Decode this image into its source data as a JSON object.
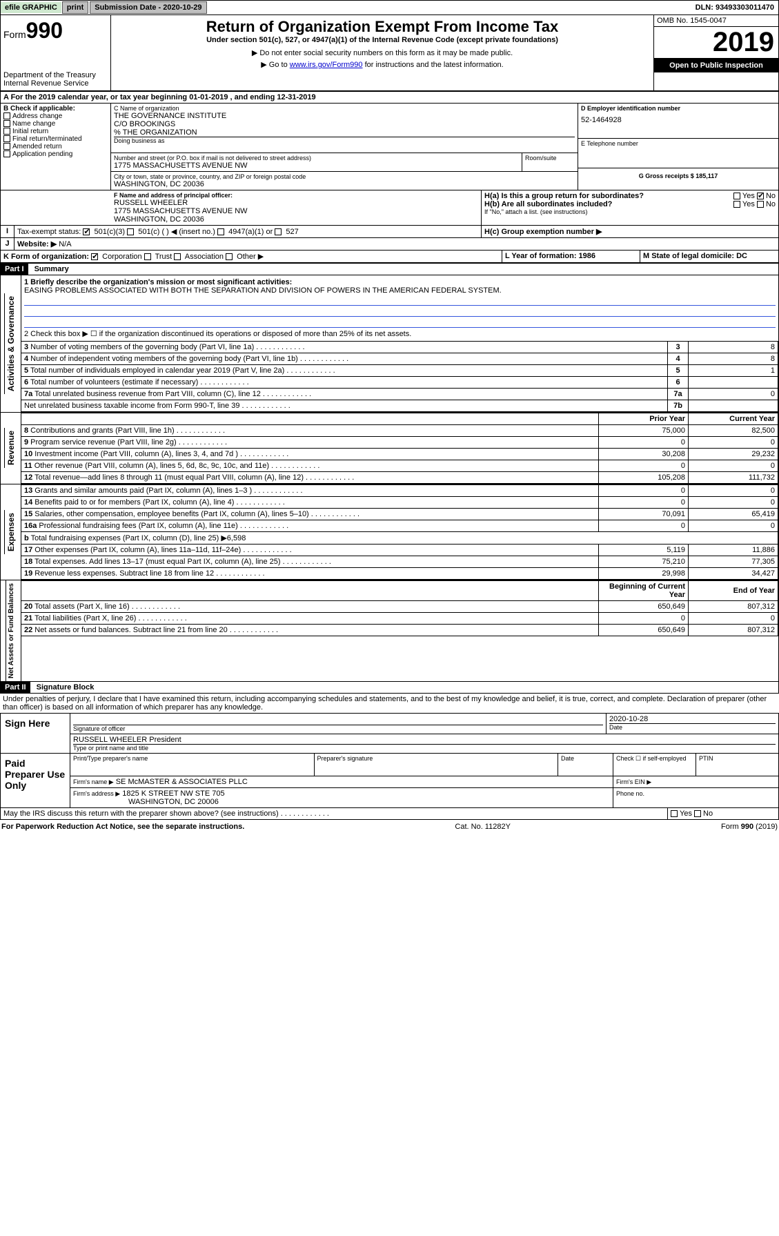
{
  "topbar": {
    "efile": "efile GRAPHIC",
    "print": "print",
    "subdate_label": "Submission Date - 2020-10-29",
    "dln": "DLN: 93493303011470"
  },
  "header": {
    "form_prefix": "Form",
    "form_number": "990",
    "title": "Return of Organization Exempt From Income Tax",
    "subtitle": "Under section 501(c), 527, or 4947(a)(1) of the Internal Revenue Code (except private foundations)",
    "note1": "▶ Do not enter social security numbers on this form as it may be made public.",
    "note2_pre": "▶ Go to ",
    "note2_link": "www.irs.gov/Form990",
    "note2_post": " for instructions and the latest information.",
    "dept1": "Department of the Treasury",
    "dept2": "Internal Revenue Service",
    "omb": "OMB No. 1545-0047",
    "year": "2019",
    "opi": "Open to Public Inspection"
  },
  "line_a": "A For the 2019 calendar year, or tax year beginning 01-01-2019    , and ending 12-31-2019",
  "block_b": {
    "label": "B Check if applicable:",
    "opts": [
      "Address change",
      "Name change",
      "Initial return",
      "Final return/terminated",
      "Amended return",
      "Application pending"
    ]
  },
  "block_c": {
    "name_label": "C Name of organization",
    "name1": "THE GOVERNANCE INSTITUTE",
    "name2": "C/O BROOKINGS",
    "name3": "% THE ORGANIZATION",
    "dba_label": "Doing business as",
    "addr_label": "Number and street (or P.O. box if mail is not delivered to street address)",
    "room": "Room/suite",
    "addr": "1775 MASSACHUSETTS AVENUE NW",
    "city_label": "City or town, state or province, country, and ZIP or foreign postal code",
    "city": "WASHINGTON, DC  20036"
  },
  "block_d": {
    "label": "D Employer identification number",
    "ein": "52-1464928",
    "e_label": "E Telephone number",
    "g_label": "G Gross receipts $ 185,117"
  },
  "block_f": {
    "label": "F  Name and address of principal officer:",
    "name": "RUSSELL WHEELER",
    "addr1": "1775 MASSACHUSETTS AVENUE NW",
    "addr2": "WASHINGTON, DC  20036"
  },
  "block_h": {
    "ha": "H(a)  Is this a group return for subordinates?",
    "hb": "H(b)  Are all subordinates included?",
    "hb_note": "If \"No,\" attach a list. (see instructions)",
    "hc": "H(c)  Group exemption number ▶",
    "yes": "Yes",
    "no": "No"
  },
  "tax_status": {
    "label": "Tax-exempt status:",
    "opt1": "501(c)(3)",
    "opt2": "501(c) (   ) ◀ (insert no.)",
    "opt3": "4947(a)(1) or",
    "opt4": "527"
  },
  "website": {
    "label": "Website: ▶",
    "value": "N/A"
  },
  "line_k": {
    "label": "K Form of organization:",
    "corp": "Corporation",
    "trust": "Trust",
    "assoc": "Association",
    "other": "Other ▶"
  },
  "line_l": {
    "label": "L Year of formation: 1986"
  },
  "line_m": {
    "label": "M State of legal domicile: DC"
  },
  "part1": {
    "title": "Part I",
    "subtitle": "Summary",
    "q1_label": "1  Briefly describe the organization's mission or most significant activities:",
    "q1_text": "EASING PROBLEMS ASSOCIATED WITH BOTH THE SEPARATION AND DIVISION OF POWERS IN THE AMERICAN FEDERAL SYSTEM.",
    "q2": "2    Check this box ▶ ☐  if the organization discontinued its operations or disposed of more than 25% of its net assets.",
    "rows_ag": [
      {
        "n": "3",
        "d": "Number of voting members of the governing body (Part VI, line 1a)",
        "box": "3",
        "v": "8"
      },
      {
        "n": "4",
        "d": "Number of independent voting members of the governing body (Part VI, line 1b)",
        "box": "4",
        "v": "8"
      },
      {
        "n": "5",
        "d": "Total number of individuals employed in calendar year 2019 (Part V, line 2a)",
        "box": "5",
        "v": "1"
      },
      {
        "n": "6",
        "d": "Total number of volunteers (estimate if necessary)",
        "box": "6",
        "v": ""
      },
      {
        "n": "7a",
        "d": "Total unrelated business revenue from Part VIII, column (C), line 12",
        "box": "7a",
        "v": "0"
      },
      {
        "n": "",
        "d": "Net unrelated business taxable income from Form 990-T, line 39",
        "box": "7b",
        "v": ""
      }
    ],
    "col_prior": "Prior Year",
    "col_current": "Current Year",
    "revenue": [
      {
        "n": "8",
        "d": "Contributions and grants (Part VIII, line 1h)",
        "p": "75,000",
        "c": "82,500"
      },
      {
        "n": "9",
        "d": "Program service revenue (Part VIII, line 2g)",
        "p": "0",
        "c": "0"
      },
      {
        "n": "10",
        "d": "Investment income (Part VIII, column (A), lines 3, 4, and 7d )",
        "p": "30,208",
        "c": "29,232"
      },
      {
        "n": "11",
        "d": "Other revenue (Part VIII, column (A), lines 5, 6d, 8c, 9c, 10c, and 11e)",
        "p": "0",
        "c": "0"
      },
      {
        "n": "12",
        "d": "Total revenue—add lines 8 through 11 (must equal Part VIII, column (A), line 12)",
        "p": "105,208",
        "c": "111,732"
      }
    ],
    "expenses": [
      {
        "n": "13",
        "d": "Grants and similar amounts paid (Part IX, column (A), lines 1–3 )",
        "p": "0",
        "c": "0"
      },
      {
        "n": "14",
        "d": "Benefits paid to or for members (Part IX, column (A), line 4)",
        "p": "0",
        "c": "0"
      },
      {
        "n": "15",
        "d": "Salaries, other compensation, employee benefits (Part IX, column (A), lines 5–10)",
        "p": "70,091",
        "c": "65,419"
      },
      {
        "n": "16a",
        "d": "Professional fundraising fees (Part IX, column (A), line 11e)",
        "p": "0",
        "c": "0"
      },
      {
        "n": "b",
        "d": "Total fundraising expenses (Part IX, column (D), line 25) ▶6,598",
        "p": "",
        "c": ""
      },
      {
        "n": "17",
        "d": "Other expenses (Part IX, column (A), lines 11a–11d, 11f–24e)",
        "p": "5,119",
        "c": "11,886"
      },
      {
        "n": "18",
        "d": "Total expenses. Add lines 13–17 (must equal Part IX, column (A), line 25)",
        "p": "75,210",
        "c": "77,305"
      },
      {
        "n": "19",
        "d": "Revenue less expenses. Subtract line 18 from line 12",
        "p": "29,998",
        "c": "34,427"
      }
    ],
    "col_boy": "Beginning of Current Year",
    "col_eoy": "End of Year",
    "netassets": [
      {
        "n": "20",
        "d": "Total assets (Part X, line 16)",
        "p": "650,649",
        "c": "807,312"
      },
      {
        "n": "21",
        "d": "Total liabilities (Part X, line 26)",
        "p": "0",
        "c": "0"
      },
      {
        "n": "22",
        "d": "Net assets or fund balances. Subtract line 21 from line 20",
        "p": "650,649",
        "c": "807,312"
      }
    ],
    "side_ag": "Activities & Governance",
    "side_rev": "Revenue",
    "side_exp": "Expenses",
    "side_na": "Net Assets or Fund Balances"
  },
  "part2": {
    "title": "Part II",
    "subtitle": "Signature Block",
    "perjury": "Under penalties of perjury, I declare that I have examined this return, including accompanying schedules and statements, and to the best of my knowledge and belief, it is true, correct, and complete. Declaration of preparer (other than officer) is based on all information of which preparer has any knowledge.",
    "sign_here": "Sign Here",
    "sig_officer": "Signature of officer",
    "date": "2020-10-28",
    "date_label": "Date",
    "officer_name": "RUSSELL WHEELER  President",
    "type_name": "Type or print name and title",
    "paid": "Paid Preparer Use Only",
    "ptp": "Print/Type preparer's name",
    "psig": "Preparer's signature",
    "pdate": "Date",
    "pcheck": "Check ☐ if self-employed",
    "ptin": "PTIN",
    "firm_name_label": "Firm's name     ▶",
    "firm_name": "SE McMASTER & ASSOCIATES PLLC",
    "firm_ein": "Firm's EIN ▶",
    "firm_addr_label": "Firm's address ▶",
    "firm_addr1": "1825 K STREET NW STE 705",
    "firm_addr2": "WASHINGTON, DC  20006",
    "phone": "Phone no.",
    "discuss": "May the IRS discuss this return with the preparer shown above? (see instructions)",
    "yes": "Yes",
    "no": "No"
  },
  "footer": {
    "pra": "For Paperwork Reduction Act Notice, see the separate instructions.",
    "cat": "Cat. No. 11282Y",
    "form": "Form 990 (2019)"
  }
}
